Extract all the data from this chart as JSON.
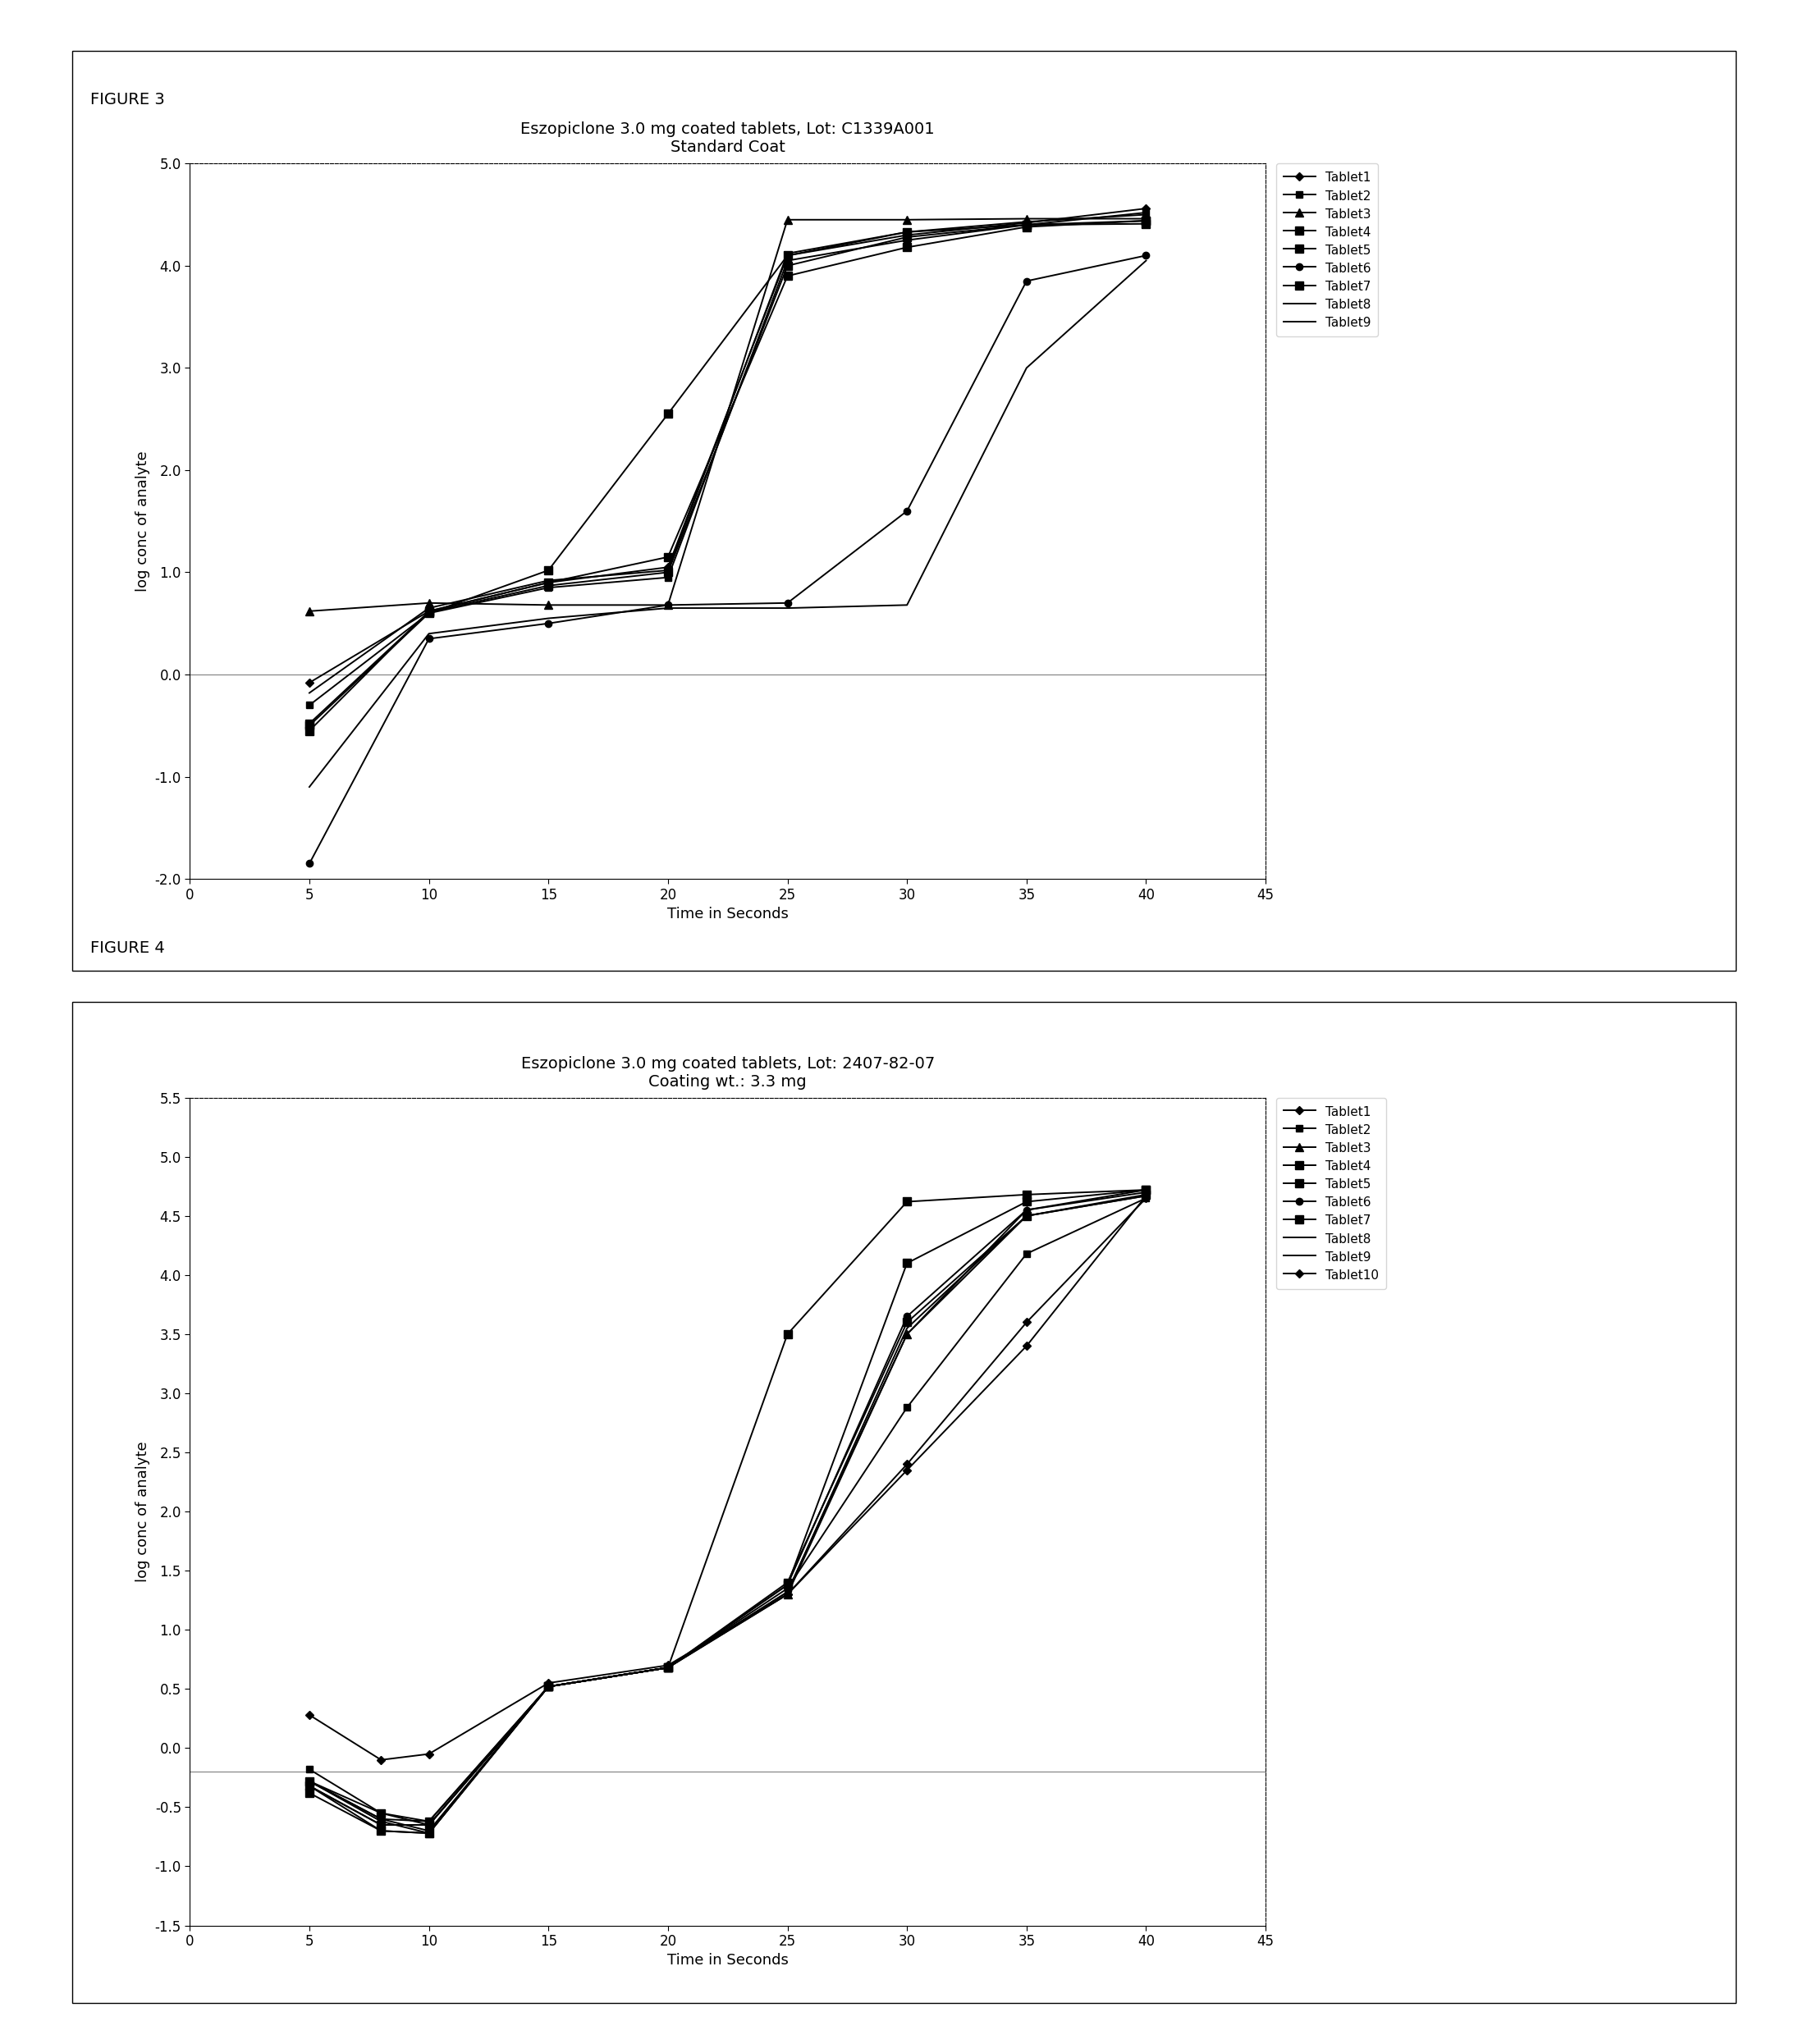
{
  "fig3": {
    "title_line1": "Eszopiclone 3.0 mg coated tablets, Lot: C1339A001",
    "title_line2": "Standard Coat",
    "xlabel": "Time in Seconds",
    "ylabel": "log conc of analyte",
    "xlim": [
      0,
      45
    ],
    "ylim": [
      -2.0,
      5.0
    ],
    "xticks": [
      0,
      5,
      10,
      15,
      20,
      25,
      30,
      35,
      40,
      45
    ],
    "yticks": [
      -2.0,
      -1.0,
      0.0,
      1.0,
      2.0,
      3.0,
      4.0,
      5.0
    ],
    "figure_label": "FIGURE 3",
    "hline_y": 0.0,
    "tablets": [
      {
        "name": "Tablet1",
        "x": [
          5,
          10,
          15,
          20,
          25,
          30,
          35,
          40
        ],
        "y": [
          -0.08,
          0.62,
          0.9,
          1.05,
          4.1,
          4.3,
          4.42,
          4.56
        ],
        "marker": "D",
        "ms": 5
      },
      {
        "name": "Tablet2",
        "x": [
          5,
          10,
          15,
          20,
          25,
          30,
          35,
          40
        ],
        "y": [
          -0.3,
          0.6,
          0.85,
          0.95,
          4.05,
          4.25,
          4.4,
          4.52
        ],
        "marker": "s",
        "ms": 6
      },
      {
        "name": "Tablet3",
        "x": [
          5,
          10,
          15,
          20,
          25,
          30,
          35,
          40
        ],
        "y": [
          0.62,
          0.7,
          0.68,
          0.68,
          4.45,
          4.45,
          4.46,
          4.46
        ],
        "marker": "^",
        "ms": 7
      },
      {
        "name": "Tablet4",
        "x": [
          5,
          10,
          15,
          20,
          25,
          30,
          35,
          40
        ],
        "y": [
          -0.5,
          0.6,
          1.02,
          2.55,
          4.1,
          4.33,
          4.4,
          4.41
        ],
        "marker": "s",
        "ms": 7
      },
      {
        "name": "Tablet5",
        "x": [
          5,
          10,
          15,
          20,
          25,
          30,
          35,
          40
        ],
        "y": [
          -0.55,
          0.62,
          0.9,
          1.15,
          3.9,
          4.18,
          4.38,
          4.44
        ],
        "marker": "s",
        "ms": 7
      },
      {
        "name": "Tablet6",
        "x": [
          5,
          10,
          15,
          20,
          25,
          30,
          35,
          40
        ],
        "y": [
          -1.85,
          0.35,
          0.5,
          0.68,
          0.7,
          1.6,
          3.85,
          4.1
        ],
        "marker": "o",
        "ms": 6
      },
      {
        "name": "Tablet7",
        "x": [
          5,
          10,
          15,
          20,
          25,
          30,
          35,
          40
        ],
        "y": [
          -0.48,
          0.61,
          0.87,
          1.0,
          4.0,
          4.28,
          4.4,
          4.44
        ],
        "marker": "s",
        "ms": 7
      },
      {
        "name": "Tablet8",
        "x": [
          5,
          10,
          15,
          20,
          25,
          30,
          35,
          40
        ],
        "y": [
          -0.18,
          0.65,
          0.92,
          1.02,
          4.12,
          4.33,
          4.43,
          4.5
        ],
        "marker": null,
        "ms": 5
      },
      {
        "name": "Tablet9",
        "x": [
          5,
          10,
          15,
          20,
          25,
          30,
          35,
          40
        ],
        "y": [
          -1.1,
          0.4,
          0.55,
          0.65,
          0.65,
          0.68,
          3.0,
          4.05
        ],
        "marker": null,
        "ms": 5
      }
    ]
  },
  "fig4": {
    "title_line1": "Eszopiclone 3.0 mg coated tablets, Lot: 2407-82-07",
    "title_line2": "Coating wt.: 3.3 mg",
    "xlabel": "Time in Seconds",
    "ylabel": "log conc of analyte",
    "xlim": [
      0,
      45
    ],
    "ylim": [
      -1.5,
      5.5
    ],
    "xticks": [
      0,
      5,
      10,
      15,
      20,
      25,
      30,
      35,
      40,
      45
    ],
    "yticks": [
      -1.5,
      -1.0,
      -0.5,
      0.0,
      0.5,
      1.0,
      1.5,
      2.0,
      2.5,
      3.0,
      3.5,
      4.0,
      4.5,
      5.0,
      5.5
    ],
    "figure_label": "FIGURE 4",
    "hline_y": -0.2,
    "tablets": [
      {
        "name": "Tablet1",
        "x": [
          5,
          8,
          10,
          15,
          20,
          25,
          30,
          35,
          40
        ],
        "y": [
          0.28,
          -0.1,
          -0.05,
          0.55,
          0.7,
          1.3,
          2.4,
          3.6,
          4.65
        ],
        "marker": "D",
        "ms": 5
      },
      {
        "name": "Tablet2",
        "x": [
          5,
          8,
          10,
          15,
          20,
          25,
          30,
          35,
          40
        ],
        "y": [
          -0.18,
          -0.55,
          -0.65,
          0.52,
          0.68,
          1.35,
          2.88,
          4.18,
          4.65
        ],
        "marker": "s",
        "ms": 6
      },
      {
        "name": "Tablet3",
        "x": [
          5,
          8,
          10,
          15,
          20,
          25,
          30,
          35,
          40
        ],
        "y": [
          -0.28,
          -0.62,
          -0.72,
          0.52,
          0.68,
          1.3,
          3.5,
          4.55,
          4.72
        ],
        "marker": "^",
        "ms": 7
      },
      {
        "name": "Tablet4",
        "x": [
          5,
          8,
          10,
          15,
          20,
          25,
          30,
          35,
          40
        ],
        "y": [
          -0.38,
          -0.7,
          -0.72,
          0.52,
          0.68,
          3.5,
          4.62,
          4.68,
          4.72
        ],
        "marker": "s",
        "ms": 7
      },
      {
        "name": "Tablet5",
        "x": [
          5,
          8,
          10,
          15,
          20,
          25,
          30,
          35,
          40
        ],
        "y": [
          -0.28,
          -0.55,
          -0.62,
          0.52,
          0.68,
          1.4,
          3.6,
          4.5,
          4.68
        ],
        "marker": "s",
        "ms": 7
      },
      {
        "name": "Tablet6",
        "x": [
          5,
          8,
          10,
          15,
          20,
          25,
          30,
          35,
          40
        ],
        "y": [
          -0.28,
          -0.6,
          -0.7,
          0.52,
          0.68,
          1.38,
          3.65,
          4.55,
          4.7
        ],
        "marker": "o",
        "ms": 6
      },
      {
        "name": "Tablet7",
        "x": [
          5,
          8,
          10,
          15,
          20,
          25,
          30,
          35,
          40
        ],
        "y": [
          -0.32,
          -0.65,
          -0.65,
          0.52,
          0.68,
          1.38,
          4.1,
          4.62,
          4.72
        ],
        "marker": "s",
        "ms": 7
      },
      {
        "name": "Tablet8",
        "x": [
          5,
          8,
          10,
          15,
          20,
          25,
          30,
          35,
          40
        ],
        "y": [
          -0.28,
          -0.6,
          -0.62,
          0.52,
          0.68,
          1.32,
          3.55,
          4.5,
          4.67
        ],
        "marker": null,
        "ms": 5
      },
      {
        "name": "Tablet9",
        "x": [
          5,
          8,
          10,
          15,
          20,
          25,
          30,
          35,
          40
        ],
        "y": [
          -0.32,
          -0.65,
          -0.65,
          0.52,
          0.68,
          1.32,
          3.5,
          4.5,
          4.67
        ],
        "marker": null,
        "ms": 5
      },
      {
        "name": "Tablet10",
        "x": [
          5,
          8,
          10,
          15,
          20,
          25,
          30,
          35,
          40
        ],
        "y": [
          -0.32,
          -0.7,
          -0.72,
          0.52,
          0.68,
          1.3,
          2.35,
          3.4,
          4.67
        ],
        "marker": "D",
        "ms": 5
      }
    ]
  },
  "title_fontsize": 14,
  "axis_label_fontsize": 13,
  "tick_fontsize": 12,
  "legend_fontsize": 11,
  "figure_label_fontsize": 14,
  "line_color": "#000000",
  "background_color": "#ffffff",
  "hline_color": "#888888",
  "border_color": "#000000"
}
